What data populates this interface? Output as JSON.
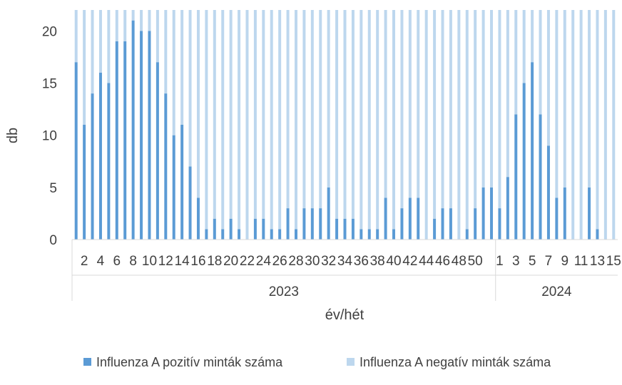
{
  "chart_data": {
    "type": "bar",
    "stacked": true,
    "xlabel": "év/hét",
    "ylabel": "db",
    "ylim": [
      0,
      22
    ],
    "yticks": [
      0,
      5,
      10,
      15,
      20
    ],
    "grid": false,
    "legend_position": "bottom",
    "categories": [
      "1",
      "2",
      "3",
      "4",
      "5",
      "6",
      "7",
      "8",
      "9",
      "10",
      "11",
      "12",
      "13",
      "14",
      "15",
      "16",
      "17",
      "18",
      "19",
      "20",
      "21",
      "22",
      "23",
      "24",
      "25",
      "26",
      "27",
      "28",
      "29",
      "30",
      "31",
      "32",
      "33",
      "34",
      "35",
      "36",
      "37",
      "38",
      "39",
      "40",
      "41",
      "42",
      "43",
      "44",
      "45",
      "46",
      "47",
      "48",
      "49",
      "50",
      "51",
      "52",
      "1",
      "2",
      "3",
      "4",
      "5",
      "6",
      "7",
      "8",
      "9",
      "10",
      "11",
      "12",
      "13",
      "14",
      "15"
    ],
    "tick_labels": [
      "",
      "2",
      "",
      "4",
      "",
      "6",
      "",
      "8",
      "",
      "10",
      "",
      "12",
      "",
      "14",
      "",
      "16",
      "",
      "18",
      "",
      "20",
      "",
      "22",
      "",
      "24",
      "",
      "26",
      "",
      "28",
      "",
      "30",
      "",
      "32",
      "",
      "34",
      "",
      "36",
      "",
      "38",
      "",
      "40",
      "",
      "42",
      "",
      "44",
      "",
      "46",
      "",
      "48",
      "",
      "50",
      "",
      "",
      "1",
      "",
      "3",
      "",
      "5",
      "",
      "7",
      "",
      "9",
      "",
      "11",
      "",
      "13",
      "",
      "15"
    ],
    "groups": [
      {
        "label": "2023",
        "count": 52
      },
      {
        "label": "2024",
        "count": 15
      }
    ],
    "series": [
      {
        "name": "Influenza A pozitív minták száma",
        "color": "#5b9bd5",
        "values": [
          17,
          11,
          14,
          16,
          15,
          19,
          19,
          21,
          20,
          20,
          17,
          14,
          10,
          11,
          7,
          4,
          1,
          2,
          1,
          2,
          1,
          0,
          2,
          2,
          1,
          1,
          3,
          1,
          3,
          3,
          3,
          5,
          2,
          2,
          2,
          1,
          1,
          1,
          4,
          1,
          3,
          4,
          4,
          0,
          2,
          3,
          3,
          0,
          1,
          3,
          5,
          5,
          3,
          6,
          12,
          15,
          17,
          12,
          9,
          4,
          5,
          0,
          0,
          5,
          1,
          0,
          0
        ]
      },
      {
        "name": "Influenza A negatív minták száma",
        "color": "#bdd7ee",
        "values": [
          5,
          11,
          8,
          6,
          7,
          3,
          3,
          1,
          2,
          2,
          5,
          8,
          12,
          11,
          15,
          18,
          21,
          20,
          21,
          20,
          21,
          22,
          20,
          20,
          21,
          21,
          19,
          21,
          19,
          19,
          19,
          17,
          20,
          20,
          20,
          21,
          21,
          21,
          18,
          21,
          19,
          18,
          18,
          22,
          20,
          19,
          19,
          22,
          21,
          19,
          17,
          17,
          19,
          16,
          10,
          7,
          5,
          10,
          13,
          18,
          17,
          22,
          22,
          17,
          21,
          22,
          22
        ]
      }
    ]
  }
}
